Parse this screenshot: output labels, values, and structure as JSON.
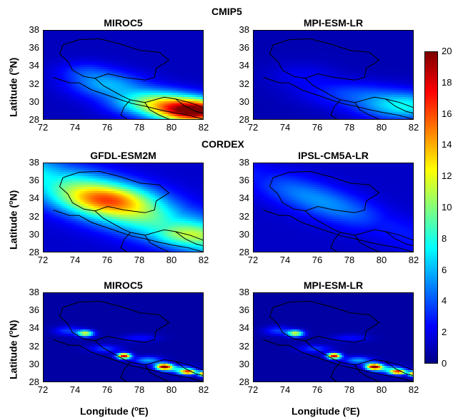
{
  "groups": {
    "cmip5": "CMIP5",
    "cordex": "CORDEX"
  },
  "axis_labels": {
    "ylabel_prefix": "Latitude (",
    "ylabel_sup": "o",
    "ylabel_suffix": "N)",
    "xlabel_prefix": "Longitude (",
    "xlabel_sup": "o",
    "xlabel_suffix": "E)"
  },
  "colorbar": {
    "ticks": [
      "20",
      "18",
      "16",
      "14",
      "12",
      "10",
      "8",
      "6",
      "4",
      "2",
      "0"
    ],
    "range": [
      0,
      20
    ],
    "colormap": "jet"
  },
  "chart_data": [
    {
      "type": "heatmap",
      "title": "MIROC5",
      "group": "CMIP5",
      "xlim": [
        72,
        82
      ],
      "ylim": [
        28,
        38
      ],
      "xticks": [
        "72",
        "74",
        "76",
        "78",
        "80",
        "82"
      ],
      "yticks": [
        "38",
        "36",
        "34",
        "32",
        "30",
        "28"
      ],
      "peak_value": 20,
      "peak_region": "southeast, around 30°N 79–82°E"
    },
    {
      "type": "heatmap",
      "title": "MPI-ESM-LR",
      "group": "CMIP5",
      "xlim": [
        72,
        82
      ],
      "ylim": [
        28,
        38
      ],
      "xticks": [
        "72",
        "74",
        "76",
        "78",
        "80",
        "82"
      ],
      "yticks": [
        "38",
        "36",
        "34",
        "32",
        "30",
        "28"
      ],
      "peak_value": 8,
      "peak_region": "southeast, around 30°N 79–82°E"
    },
    {
      "type": "heatmap",
      "title": "GFDL-ESM2M",
      "group": "CORDEX",
      "xlim": [
        72,
        82
      ],
      "ylim": [
        28,
        38
      ],
      "xticks": [
        "72",
        "74",
        "76",
        "78",
        "80",
        "82"
      ],
      "yticks": [
        "38",
        "36",
        "34",
        "32",
        "30",
        "28"
      ],
      "peak_value": 17,
      "peak_region": "diagonal band from 35°N 74°E to 30°N 81°E"
    },
    {
      "type": "heatmap",
      "title": "IPSL-CM5A-LR",
      "group": "CORDEX",
      "xlim": [
        72,
        82
      ],
      "ylim": [
        28,
        38
      ],
      "xticks": [
        "72",
        "74",
        "76",
        "78",
        "80",
        "82"
      ],
      "yticks": [
        "38",
        "36",
        "34",
        "32",
        "30",
        "28"
      ],
      "peak_value": 7,
      "peak_region": "diagonal band from 36°N 73°E to 30°N 82°E"
    },
    {
      "type": "heatmap",
      "title": "MIROC5",
      "group": "",
      "xlim": [
        72,
        82
      ],
      "ylim": [
        28,
        38
      ],
      "xticks": [
        "72",
        "74",
        "76",
        "78",
        "80",
        "82"
      ],
      "yticks": [
        "38",
        "36",
        "34",
        "32",
        "30",
        "28"
      ],
      "peak_value": 20,
      "peak_region": "hotspots near 29.8°N 79.5°E and 31°N 77°E"
    },
    {
      "type": "heatmap",
      "title": "MPI-ESM-LR",
      "group": "",
      "xlim": [
        72,
        82
      ],
      "ylim": [
        28,
        38
      ],
      "xticks": [
        "72",
        "74",
        "76",
        "78",
        "80",
        "82"
      ],
      "yticks": [
        "38",
        "36",
        "34",
        "32",
        "30",
        "28"
      ],
      "peak_value": 20,
      "peak_region": "hotspots near 29.8°N 79.5°E and 31°N 77°E"
    }
  ]
}
